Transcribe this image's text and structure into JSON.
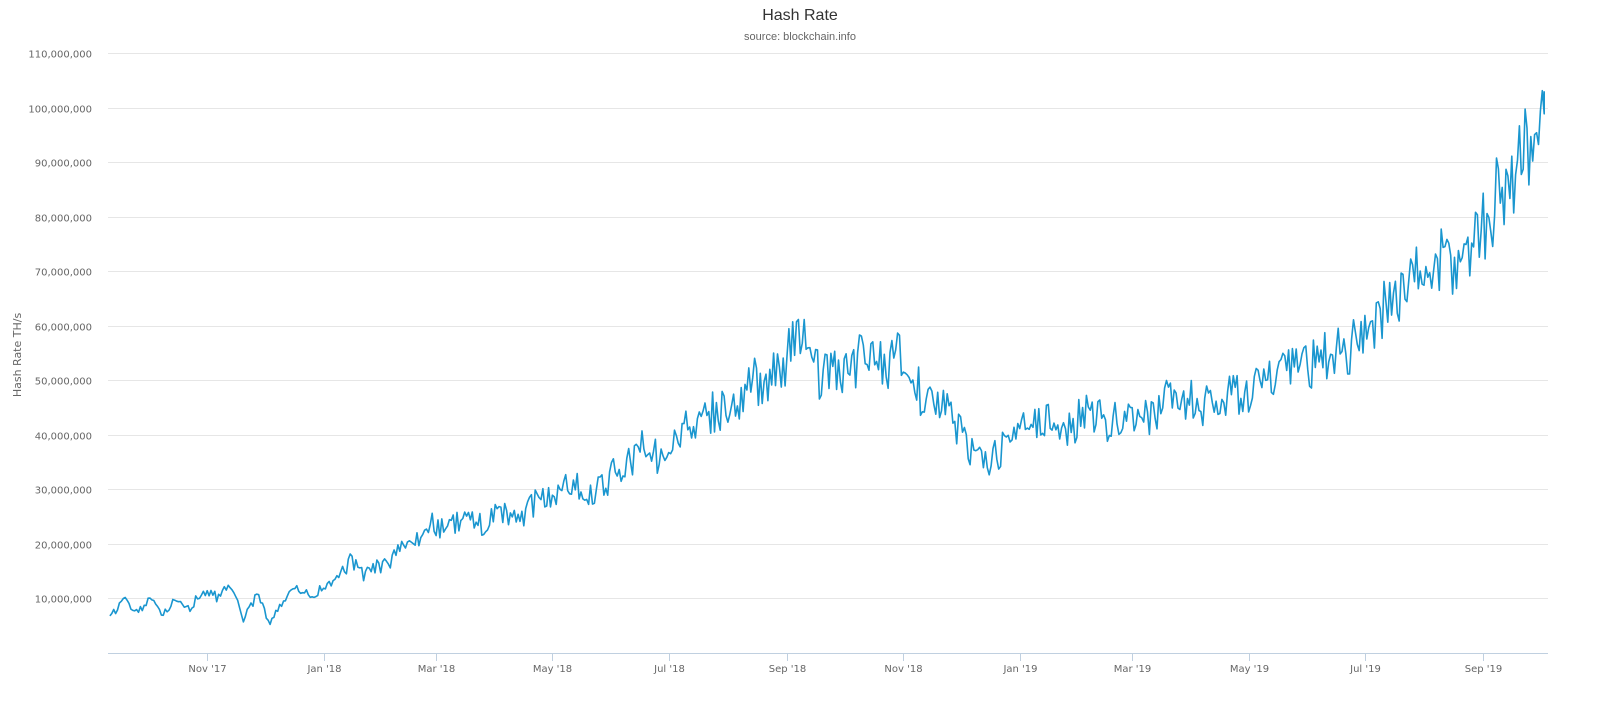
{
  "chart_data": {
    "type": "line",
    "title": "Hash Rate",
    "subtitle": "source: blockchain.info",
    "ylabel": "Hash Rate TH/s",
    "xlabel": "",
    "ylim": [
      0,
      110000000
    ],
    "yticks": [
      10000000,
      20000000,
      30000000,
      40000000,
      50000000,
      60000000,
      70000000,
      80000000,
      90000000,
      100000000,
      110000000
    ],
    "ytick_labels": [
      "10,000,000",
      "20,000,000",
      "30,000,000",
      "40,000,000",
      "50,000,000",
      "60,000,000",
      "70,000,000",
      "80,000,000",
      "90,000,000",
      "100,000,000",
      "110,000,000"
    ],
    "xlim": [
      "2017-09-10",
      "2019-10-05"
    ],
    "xticks": [
      {
        "date": "2017-11-01",
        "label": "Nov '17"
      },
      {
        "date": "2018-01-01",
        "label": "Jan '18"
      },
      {
        "date": "2018-03-01",
        "label": "Mar '18"
      },
      {
        "date": "2018-05-01",
        "label": "May '18"
      },
      {
        "date": "2018-07-01",
        "label": "Jul '18"
      },
      {
        "date": "2018-09-01",
        "label": "Sep '18"
      },
      {
        "date": "2018-11-01",
        "label": "Nov '18"
      },
      {
        "date": "2019-01-01",
        "label": "Jan '19"
      },
      {
        "date": "2019-03-01",
        "label": "Mar '19"
      },
      {
        "date": "2019-05-01",
        "label": "May '19"
      },
      {
        "date": "2019-07-01",
        "label": "Jul '19"
      },
      {
        "date": "2019-09-01",
        "label": "Sep '19"
      }
    ],
    "grid": true,
    "legend": "none",
    "series": [
      {
        "color": "#1a96cf",
        "x": [
          "2017-09-11",
          "2017-09-18",
          "2017-09-25",
          "2017-10-02",
          "2017-10-09",
          "2017-10-16",
          "2017-10-23",
          "2017-10-30",
          "2017-11-06",
          "2017-11-13",
          "2017-11-20",
          "2017-11-27",
          "2017-12-04",
          "2017-12-11",
          "2017-12-18",
          "2017-12-25",
          "2018-01-01",
          "2018-01-08",
          "2018-01-15",
          "2018-01-22",
          "2018-01-29",
          "2018-02-05",
          "2018-02-12",
          "2018-02-19",
          "2018-02-26",
          "2018-03-05",
          "2018-03-12",
          "2018-03-19",
          "2018-03-26",
          "2018-04-02",
          "2018-04-09",
          "2018-04-16",
          "2018-04-23",
          "2018-04-30",
          "2018-05-07",
          "2018-05-14",
          "2018-05-21",
          "2018-05-28",
          "2018-06-04",
          "2018-06-11",
          "2018-06-18",
          "2018-06-25",
          "2018-07-02",
          "2018-07-09",
          "2018-07-16",
          "2018-07-23",
          "2018-07-30",
          "2018-08-06",
          "2018-08-13",
          "2018-08-20",
          "2018-08-27",
          "2018-09-03",
          "2018-09-10",
          "2018-09-17",
          "2018-09-24",
          "2018-10-01",
          "2018-10-08",
          "2018-10-15",
          "2018-10-22",
          "2018-10-29",
          "2018-11-05",
          "2018-11-12",
          "2018-11-19",
          "2018-11-26",
          "2018-12-03",
          "2018-12-10",
          "2018-12-17",
          "2018-12-24",
          "2018-12-31",
          "2019-01-07",
          "2019-01-14",
          "2019-01-21",
          "2019-01-28",
          "2019-02-04",
          "2019-02-11",
          "2019-02-18",
          "2019-02-25",
          "2019-03-04",
          "2019-03-11",
          "2019-03-18",
          "2019-03-25",
          "2019-04-01",
          "2019-04-08",
          "2019-04-15",
          "2019-04-22",
          "2019-04-29",
          "2019-05-06",
          "2019-05-13",
          "2019-05-20",
          "2019-05-27",
          "2019-06-03",
          "2019-06-10",
          "2019-06-17",
          "2019-06-24",
          "2019-07-01",
          "2019-07-08",
          "2019-07-15",
          "2019-07-22",
          "2019-07-29",
          "2019-08-05",
          "2019-08-12",
          "2019-08-19",
          "2019-08-26",
          "2019-09-02",
          "2019-09-09",
          "2019-09-16",
          "2019-09-23",
          "2019-09-30",
          "2019-10-03"
        ],
        "values": [
          6500000,
          9800000,
          7500000,
          9500000,
          7300000,
          9900000,
          8300000,
          11500000,
          10200000,
          12900000,
          6000000,
          10800000,
          5300000,
          9800000,
          11700000,
          10300000,
          11900000,
          13500000,
          16800000,
          14300000,
          15800000,
          16900000,
          19200000,
          20400000,
          24000000,
          22500000,
          23800000,
          24700000,
          23300000,
          26100000,
          24500000,
          25200000,
          27800000,
          28600000,
          30500000,
          31400000,
          28700000,
          30500000,
          33800000,
          35000000,
          38000000,
          36000000,
          37500000,
          42000000,
          40000000,
          44000000,
          45000000,
          46000000,
          50000000,
          48500000,
          52000000,
          55000000,
          60000000,
          51000000,
          52000000,
          50000000,
          54000000,
          55000000,
          52000000,
          56000000,
          50000000,
          47000000,
          46000000,
          44000000,
          39000000,
          36000000,
          35000000,
          38000000,
          40000000,
          41500000,
          42500000,
          43000000,
          41000000,
          44000000,
          43500000,
          42000000,
          43500000,
          44000000,
          43500000,
          46000000,
          46500000,
          46000000,
          45000000,
          46000000,
          47000000,
          48000000,
          49000000,
          50000000,
          51000000,
          52000000,
          53000000,
          54000000,
          55000000,
          56000000,
          59000000,
          62000000,
          64000000,
          68000000,
          69000000,
          71000000,
          72000000,
          70000000,
          76000000,
          79000000,
          84000000,
          88000000,
          92000000,
          95000000,
          103000000
        ]
      }
    ]
  }
}
